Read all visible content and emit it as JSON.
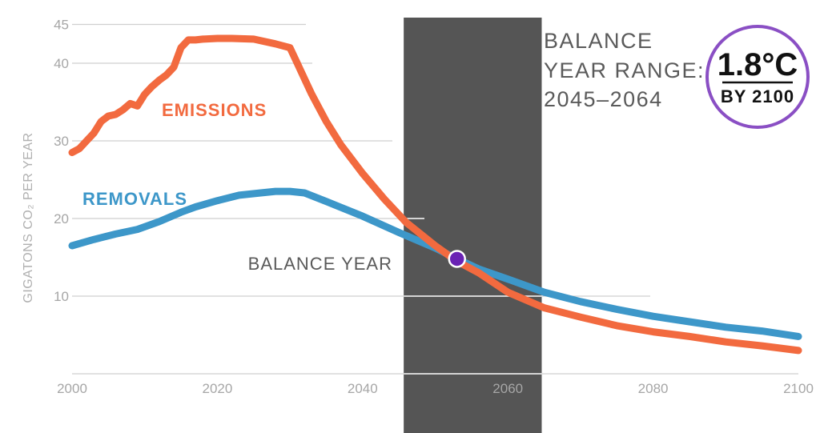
{
  "chart_data": {
    "type": "line",
    "ylabel": "GIGATONS CO₂ PER YEAR",
    "xlim": [
      2000,
      2100
    ],
    "ylim": [
      0,
      45
    ],
    "x_ticks": [
      "2000",
      "2020",
      "2040",
      "2060",
      "2080",
      "2100"
    ],
    "y_ticks": [
      "10",
      "20",
      "30",
      "40",
      "45"
    ],
    "grid": "horizontal partial",
    "series": [
      {
        "name": "EMISSIONS",
        "color": "#f26a3f",
        "x": [
          2000,
          2001,
          2002,
          2003,
          2004,
          2005,
          2006,
          2007,
          2008,
          2009,
          2010,
          2011,
          2012,
          2013,
          2014,
          2015,
          2016,
          2017,
          2018,
          2020,
          2022,
          2025,
          2028,
          2030,
          2031,
          2032,
          2033,
          2035,
          2037,
          2040,
          2043,
          2046,
          2050,
          2053,
          2056,
          2060,
          2065,
          2070,
          2075,
          2080,
          2085,
          2090,
          2095,
          2100
        ],
        "values": [
          28.5,
          29.0,
          30.0,
          31.0,
          32.5,
          33.2,
          33.4,
          34.0,
          34.8,
          34.5,
          36.0,
          37.0,
          37.8,
          38.5,
          39.5,
          42.0,
          43.0,
          43.0,
          43.1,
          43.2,
          43.2,
          43.1,
          42.5,
          42.0,
          40.0,
          38.0,
          36.0,
          32.5,
          29.5,
          25.8,
          22.5,
          19.5,
          16.5,
          14.5,
          13.0,
          10.5,
          8.5,
          7.3,
          6.2,
          5.4,
          4.8,
          4.1,
          3.6,
          3.0
        ]
      },
      {
        "name": "REMOVALS",
        "color": "#3d97c9",
        "x": [
          2000,
          2003,
          2006,
          2009,
          2012,
          2015,
          2017,
          2020,
          2023,
          2026,
          2028,
          2030,
          2032,
          2035,
          2040,
          2045,
          2050,
          2053,
          2056,
          2060,
          2065,
          2070,
          2075,
          2080,
          2085,
          2090,
          2095,
          2100
        ],
        "values": [
          16.5,
          17.3,
          18.0,
          18.6,
          19.6,
          20.8,
          21.5,
          22.3,
          23.0,
          23.3,
          23.5,
          23.5,
          23.3,
          22.2,
          20.3,
          18.2,
          16.2,
          14.8,
          13.5,
          12.2,
          10.5,
          9.3,
          8.3,
          7.4,
          6.7,
          6.0,
          5.5,
          4.8
        ]
      }
    ],
    "annotations": {
      "balance_year_label": "BALANCE YEAR",
      "balance_point": {
        "x": 2053,
        "y": 14.8
      },
      "balance_range_title": [
        "BALANCE",
        "YEAR RANGE:",
        "2045–2064"
      ],
      "balance_range": [
        2045,
        2064
      ]
    }
  },
  "badge": {
    "main": "1.8°C",
    "sub": "BY 2100",
    "ring_color": "#8a4fc4"
  },
  "colors": {
    "range_band": "#555555",
    "balance_marker": "#6a23b4",
    "grid": "#cfcfcf"
  }
}
